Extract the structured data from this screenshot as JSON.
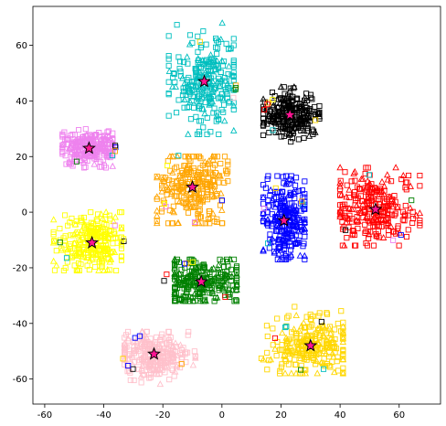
{
  "chart_data": {
    "type": "scatter",
    "title": "",
    "xlabel": "",
    "ylabel": "",
    "xlim": [
      -64,
      74
    ],
    "ylim": [
      -69,
      74
    ],
    "grid": false,
    "x_ticks": [
      -60,
      -40,
      -20,
      0,
      20,
      40,
      60
    ],
    "y_ticks": [
      -60,
      -40,
      -20,
      0,
      20,
      40,
      60
    ],
    "marker_shapes": [
      "square",
      "triangle"
    ],
    "clusters": [
      {
        "color": "#00bfbf",
        "center": [
          -6,
          47
        ],
        "spread": [
          6,
          8
        ],
        "bounds": [
          -18,
          4,
          28,
          68
        ]
      },
      {
        "color": "#000000",
        "center": [
          23,
          35
        ],
        "spread": [
          5,
          4
        ],
        "bounds": [
          14,
          33,
          24,
          45
        ]
      },
      {
        "color": "#ee82ee",
        "center": [
          -45,
          23
        ],
        "spread": [
          5,
          3
        ],
        "bounds": [
          -54,
          -37,
          16,
          30
        ]
      },
      {
        "color": "#ffa500",
        "center": [
          -10,
          9
        ],
        "spread": [
          6,
          7
        ],
        "bounds": [
          -22,
          2,
          -4,
          20
        ]
      },
      {
        "color": "#0000ff",
        "center": [
          21,
          -3
        ],
        "spread": [
          4,
          7
        ],
        "bounds": [
          14,
          28,
          -17,
          13
        ]
      },
      {
        "color": "#ff0000",
        "center": [
          52,
          1
        ],
        "spread": [
          7,
          7
        ],
        "bounds": [
          40,
          67,
          -12,
          16
        ]
      },
      {
        "color": "#ffff00",
        "center": [
          -44,
          -11
        ],
        "spread": [
          6,
          5
        ],
        "bounds": [
          -57,
          -34,
          -21,
          0
        ]
      },
      {
        "color": "#008000",
        "center": [
          -7,
          -25
        ],
        "spread": [
          7,
          4
        ],
        "bounds": [
          -16,
          5,
          -32,
          -17
        ]
      },
      {
        "color": "#ffc0cb",
        "center": [
          -23,
          -51
        ],
        "spread": [
          6,
          4
        ],
        "bounds": [
          -33,
          -9,
          -62,
          -43
        ]
      },
      {
        "color": "#ffd700",
        "center": [
          30,
          -48
        ],
        "spread": [
          7,
          5
        ],
        "bounds": [
          11,
          41,
          -58,
          -34
        ]
      }
    ],
    "centroids": [
      {
        "x": -6,
        "y": 47
      },
      {
        "x": 23,
        "y": 35
      },
      {
        "x": -45,
        "y": 23
      },
      {
        "x": -10,
        "y": 9
      },
      {
        "x": 21,
        "y": -3
      },
      {
        "x": 52,
        "y": 1
      },
      {
        "x": -44,
        "y": -11
      },
      {
        "x": -7,
        "y": -25
      },
      {
        "x": -23,
        "y": -51
      },
      {
        "x": 30,
        "y": -48
      }
    ],
    "centroid_marker": {
      "shape": "star",
      "fill": "#ff1493",
      "edge": "#000000"
    }
  }
}
